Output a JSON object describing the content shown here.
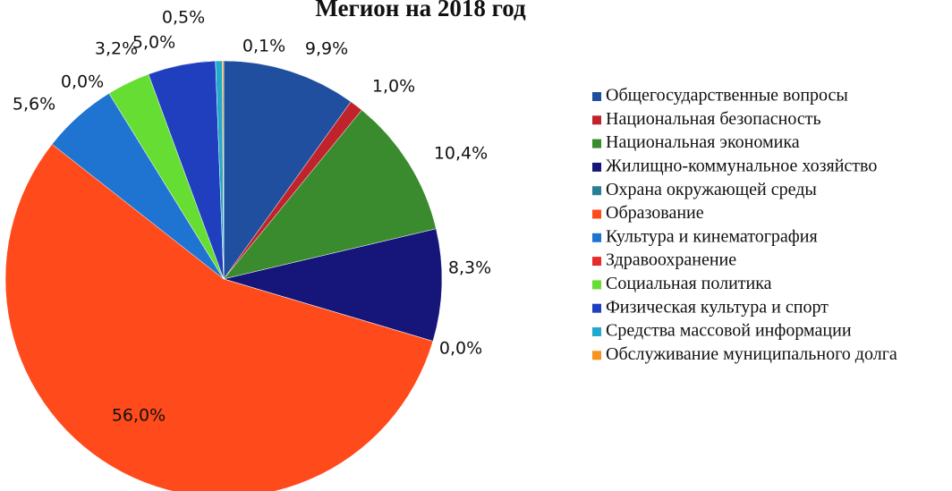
{
  "chart_data": {
    "type": "pie",
    "title": "Мегион на 2018 год",
    "categories": [
      "Общегосударственные вопросы",
      "Национальная безопасность",
      "Национальная экономика",
      "Жилищно-коммунальное хозяйство",
      "Охрана окружающей среды",
      "Образование",
      "Культура и кинематография",
      "Здравоохранение",
      "Социальная политика",
      "Физическая культура и спорт",
      "Средства массовой информации",
      "Обслуживание муниципального долга"
    ],
    "values": [
      9.9,
      1.0,
      10.4,
      8.3,
      0.0,
      56.0,
      5.6,
      0.0,
      3.2,
      5.0,
      0.5,
      0.1
    ],
    "value_labels": [
      "9,9%",
      "1,0%",
      "10,4%",
      "8,3%",
      "0,0%",
      "56,0%",
      "5,6%",
      "0,0%",
      "3,2%",
      "5,0%",
      "0,5%",
      "0,1%"
    ],
    "colors": [
      "#1f4f9e",
      "#c0232b",
      "#3a8a2e",
      "#16167a",
      "#2b7d98",
      "#ff4a1c",
      "#1e74d0",
      "#e52b2b",
      "#66dd33",
      "#1f3fbf",
      "#22aacc",
      "#f7931e"
    ],
    "legend": "right"
  }
}
